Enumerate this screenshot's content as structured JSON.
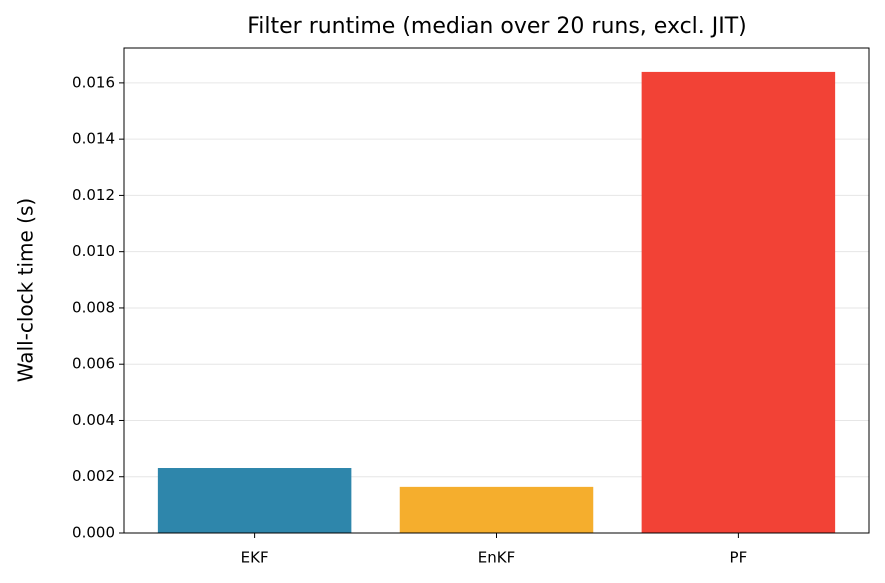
{
  "chart_data": {
    "type": "bar",
    "title": "Filter runtime (median over 20 runs, excl. JIT)",
    "y_label": "Wall-clock time (s)",
    "categories": [
      "EKF",
      "EnKF",
      "PF"
    ],
    "values": [
      0.00231,
      0.00164,
      0.01639
    ],
    "colors": [
      "#2e86ab",
      "#f5ae2d",
      "#f24236"
    ],
    "ylim": [
      0,
      0.01724
    ],
    "yticks": [
      {
        "value": 0,
        "label": "0.000"
      },
      {
        "value": 0.002,
        "label": "0.002"
      },
      {
        "value": 0.004,
        "label": "0.004"
      },
      {
        "value": 0.006,
        "label": "0.006"
      },
      {
        "value": 0.008,
        "label": "0.008"
      },
      {
        "value": 0.01,
        "label": "0.010"
      },
      {
        "value": 0.012,
        "label": "0.012"
      },
      {
        "value": 0.014,
        "label": "0.014"
      },
      {
        "value": 0.016,
        "label": "0.016"
      }
    ],
    "grid": true
  }
}
